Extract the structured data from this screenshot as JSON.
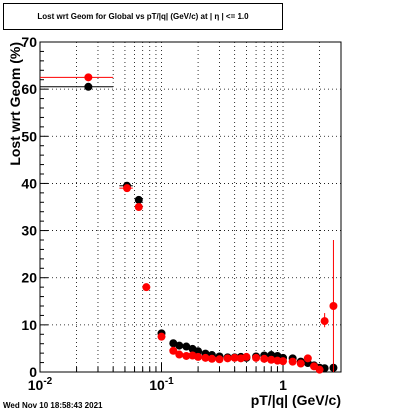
{
  "chart_data": {
    "type": "scatter",
    "title": "Lost wrt Geom for Global vs pT/|q| (GeV/c) at |  η  | <= 1.0",
    "xlabel": "pT/|q| (GeV/c)",
    "ylabel": "Lost wrt Geom (%)",
    "x_scale": "log",
    "xlim": [
      0.01,
      3.0
    ],
    "ylim": [
      0,
      70
    ],
    "x_major_ticks": [
      0.01,
      0.1,
      1
    ],
    "x_tick_labels": [
      {
        "base": "10",
        "exp": "-2"
      },
      {
        "base": "10",
        "exp": "-1"
      },
      {
        "base": "1",
        "exp": ""
      }
    ],
    "y_ticks": [
      0,
      10,
      20,
      30,
      40,
      50,
      60,
      70
    ],
    "y_tick_labels": [
      "0",
      "10",
      "20",
      "30",
      "40",
      "50",
      "60",
      "70"
    ],
    "grid": true,
    "series": [
      {
        "color": "#000000",
        "points": [
          {
            "x": 0.025,
            "y": 60.5,
            "xlo": 0.01,
            "xhi": 0.04
          },
          {
            "x": 0.052,
            "y": 39.5,
            "xlo": 0.045,
            "xhi": 0.058
          },
          {
            "x": 0.065,
            "y": 36.5
          },
          {
            "x": 0.1,
            "y": 8.2
          },
          {
            "x": 0.125,
            "y": 6.1
          },
          {
            "x": 0.14,
            "y": 5.6
          },
          {
            "x": 0.16,
            "y": 5.4
          },
          {
            "x": 0.18,
            "y": 4.9
          },
          {
            "x": 0.2,
            "y": 4.4
          },
          {
            "x": 0.23,
            "y": 3.9
          },
          {
            "x": 0.26,
            "y": 3.6
          },
          {
            "x": 0.3,
            "y": 3.3
          },
          {
            "x": 0.35,
            "y": 3.1
          },
          {
            "x": 0.4,
            "y": 3.1
          },
          {
            "x": 0.45,
            "y": 3.2
          },
          {
            "x": 0.5,
            "y": 3.0
          },
          {
            "x": 0.6,
            "y": 3.3
          },
          {
            "x": 0.7,
            "y": 3.5
          },
          {
            "x": 0.8,
            "y": 3.6
          },
          {
            "x": 0.9,
            "y": 3.4
          },
          {
            "x": 1.0,
            "y": 3.0
          },
          {
            "x": 1.2,
            "y": 2.9
          },
          {
            "x": 1.4,
            "y": 2.2
          },
          {
            "x": 1.6,
            "y": 1.9
          },
          {
            "x": 1.8,
            "y": 1.4
          },
          {
            "x": 2.0,
            "y": 0.9
          },
          {
            "x": 2.2,
            "y": 0.8
          },
          {
            "x": 2.6,
            "y": 0.9
          }
        ]
      },
      {
        "color": "#ff0000",
        "points": [
          {
            "x": 0.025,
            "y": 62.5,
            "xlo": 0.01,
            "xhi": 0.04
          },
          {
            "x": 0.052,
            "y": 39.0,
            "xlo": 0.045,
            "xhi": 0.058
          },
          {
            "x": 0.065,
            "y": 35.0
          },
          {
            "x": 0.075,
            "y": 18.0
          },
          {
            "x": 0.1,
            "y": 7.5
          },
          {
            "x": 0.125,
            "y": 4.5
          },
          {
            "x": 0.14,
            "y": 3.7
          },
          {
            "x": 0.16,
            "y": 3.4
          },
          {
            "x": 0.18,
            "y": 3.5
          },
          {
            "x": 0.2,
            "y": 3.2
          },
          {
            "x": 0.23,
            "y": 3.0
          },
          {
            "x": 0.26,
            "y": 2.8
          },
          {
            "x": 0.3,
            "y": 2.7
          },
          {
            "x": 0.35,
            "y": 2.9
          },
          {
            "x": 0.4,
            "y": 3.0
          },
          {
            "x": 0.45,
            "y": 2.9
          },
          {
            "x": 0.5,
            "y": 3.2
          },
          {
            "x": 0.6,
            "y": 3.0
          },
          {
            "x": 0.7,
            "y": 2.8
          },
          {
            "x": 0.8,
            "y": 2.6
          },
          {
            "x": 0.9,
            "y": 2.4
          },
          {
            "x": 1.0,
            "y": 2.3
          },
          {
            "x": 1.2,
            "y": 2.2
          },
          {
            "x": 1.4,
            "y": 1.8
          },
          {
            "x": 1.6,
            "y": 2.9
          },
          {
            "x": 1.8,
            "y": 1.2
          },
          {
            "x": 2.0,
            "y": 0.5
          },
          {
            "x": 2.2,
            "y": 10.8,
            "ylo": 9.5,
            "yhi": 12.5
          },
          {
            "x": 2.6,
            "y": 14.0,
            "ylo": 0,
            "yhi": 28
          }
        ]
      }
    ]
  },
  "footer": {
    "timestamp": "Wed Nov 10 18:58:43 2021"
  }
}
